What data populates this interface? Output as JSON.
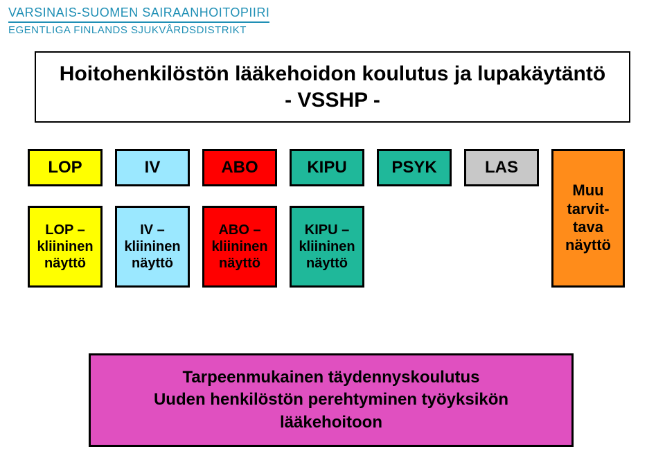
{
  "header": {
    "line1": "VARSINAIS-SUOMEN SAIRAANHOITOPIIRI",
    "line2": "EGENTLIGA FINLANDS SJUKVÅRDSDISTRIKT",
    "color": "#1f8fb5"
  },
  "title": {
    "line1": "Hoitohenkilöstön lääkehoidon koulutus ja lupakäytäntö",
    "line2": "- VSSHP -"
  },
  "columns": [
    {
      "top": "LOP",
      "bottom": "LOP – kliininen näyttö",
      "color": "#ffff00"
    },
    {
      "top": "IV",
      "bottom": "IV – kliininen näyttö",
      "color": "#9be8ff"
    },
    {
      "top": "ABO",
      "bottom": "ABO – kliininen näyttö",
      "color": "#ff0000"
    },
    {
      "top": "KIPU",
      "bottom": "KIPU – kliininen näyttö",
      "color": "#1fb89a"
    },
    {
      "top": "PSYK",
      "bottom": null,
      "color": "#1fb89a"
    },
    {
      "top": "LAS",
      "bottom": null,
      "color": "#c8c8c8"
    }
  ],
  "muu": {
    "text": "Muu tarvit-tava näyttö",
    "color": "#ff8c1a"
  },
  "bottom": {
    "line1": "Tarpeenmukainen täydennyskoulutus",
    "line2": "Uuden henkilöstön perehtyminen työyksikön lääkehoitoon",
    "color": "#e050c0"
  },
  "global": {
    "background": "#ffffff",
    "border": "#000000"
  }
}
